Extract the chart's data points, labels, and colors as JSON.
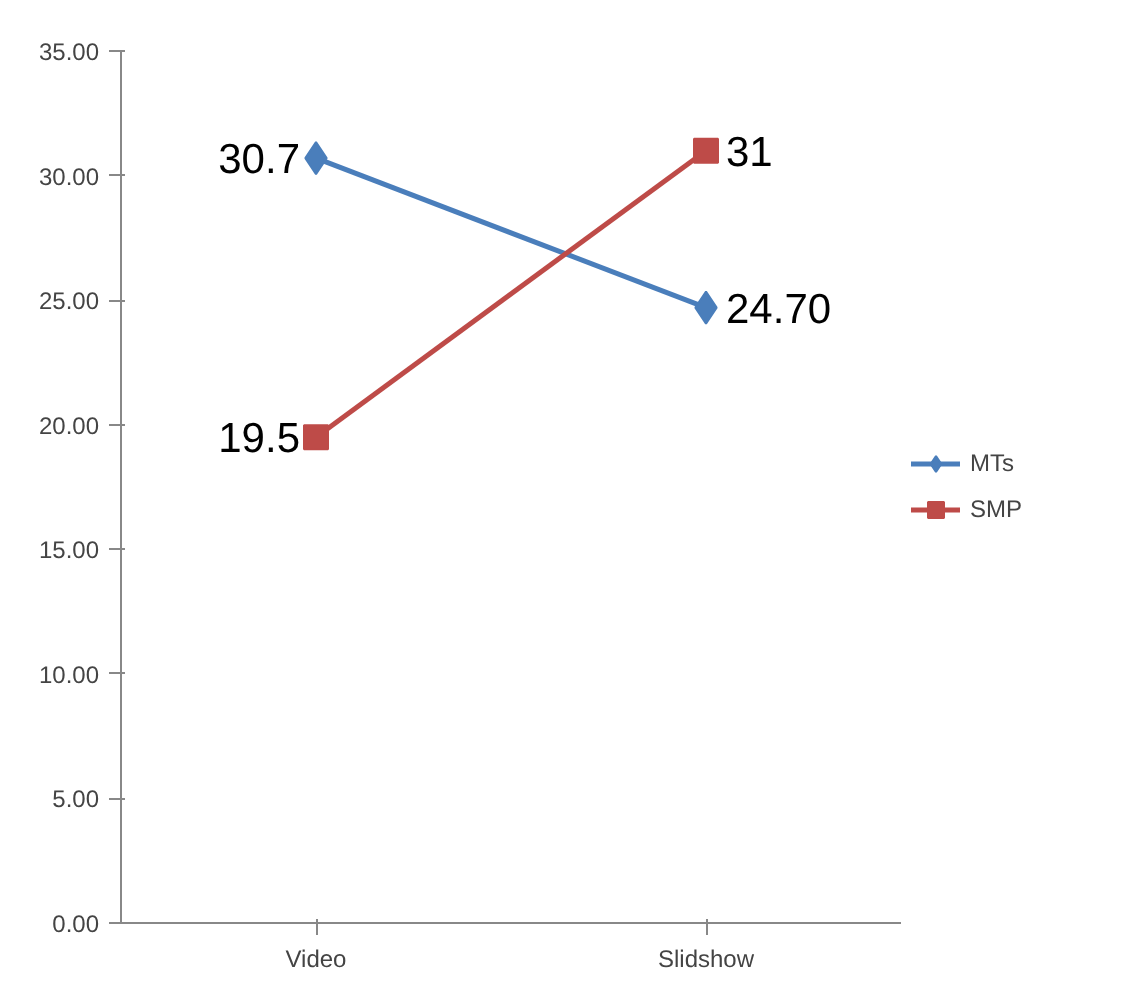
{
  "chart_data": {
    "type": "line",
    "categories": [
      "Video",
      "Slidshow"
    ],
    "series": [
      {
        "name": "MTs",
        "color": "#4a7ebb",
        "marker": "diamond",
        "values": [
          30.7,
          24.7
        ],
        "value_labels": [
          "30.7",
          "24.70"
        ]
      },
      {
        "name": "SMP",
        "color": "#be4b48",
        "marker": "square",
        "values": [
          19.5,
          31
        ],
        "value_labels": [
          "19.5",
          "31"
        ]
      }
    ],
    "ylim": [
      0,
      35
    ],
    "yticks": [
      {
        "value": 0,
        "label": "0.00"
      },
      {
        "value": 5,
        "label": "5.00"
      },
      {
        "value": 10,
        "label": "10.00"
      },
      {
        "value": 15,
        "label": "15.00"
      },
      {
        "value": 20,
        "label": "20.00"
      },
      {
        "value": 25,
        "label": "25.00"
      },
      {
        "value": 30,
        "label": "30.00"
      },
      {
        "value": 35,
        "label": "35.00"
      }
    ],
    "grid": false,
    "legend": "right"
  }
}
